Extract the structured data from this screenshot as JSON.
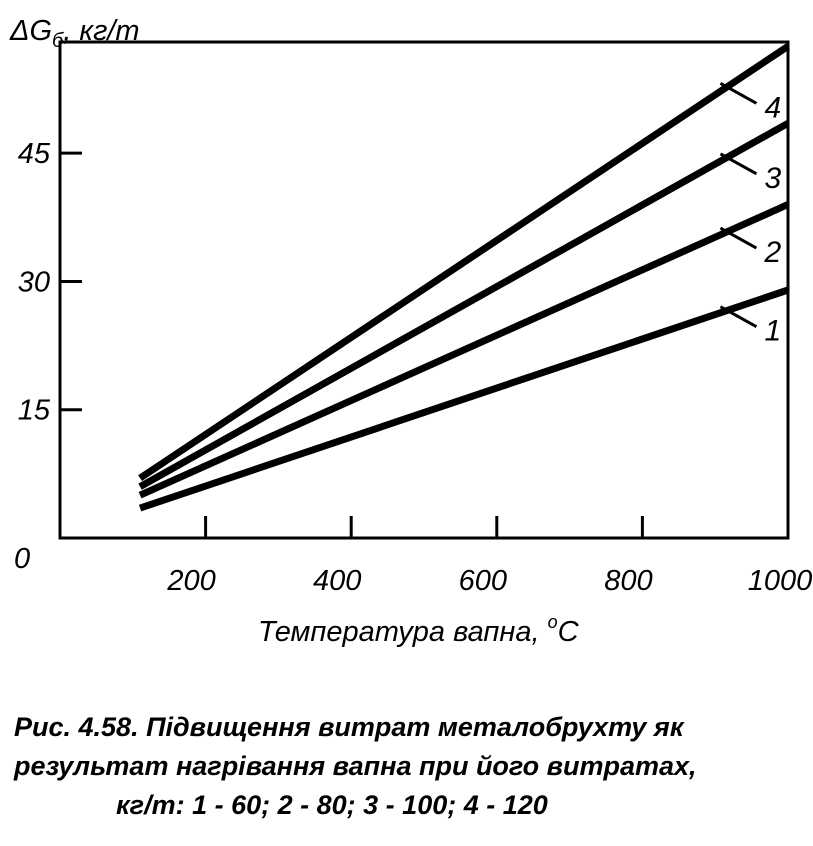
{
  "chart_data": {
    "type": "line",
    "ylabel_main": "ΔG",
    "ylabel_sub": "б",
    "ylabel_unit": ", кг/т",
    "xlabel_main": "Температура вапна, ",
    "xlabel_sup": "o",
    "xlabel_unit": "C",
    "xlim": [
      0,
      1000
    ],
    "ylim": [
      0,
      58
    ],
    "x_ticks": [
      200,
      400,
      600,
      800,
      1000
    ],
    "y_ticks": [
      15,
      30,
      45
    ],
    "origin_label": "0",
    "grid": false,
    "series": [
      {
        "name": "1",
        "x": [
          110,
          1000
        ],
        "y": [
          3.5,
          29
        ]
      },
      {
        "name": "2",
        "x": [
          110,
          1000
        ],
        "y": [
          5,
          39
        ]
      },
      {
        "name": "3",
        "x": [
          110,
          1000
        ],
        "y": [
          6,
          48.5
        ]
      },
      {
        "name": "4",
        "x": [
          110,
          1000
        ],
        "y": [
          7,
          57.5
        ]
      }
    ],
    "line_color": "#000000"
  },
  "caption": {
    "line1": "Рис. 4.58. Підвищення витрат металобрухту як",
    "line2": "результат нагрівання вапна при його витратах,",
    "line3": "кг/т: 1 - 60; 2 - 80; 3 - 100; 4 - 120"
  }
}
